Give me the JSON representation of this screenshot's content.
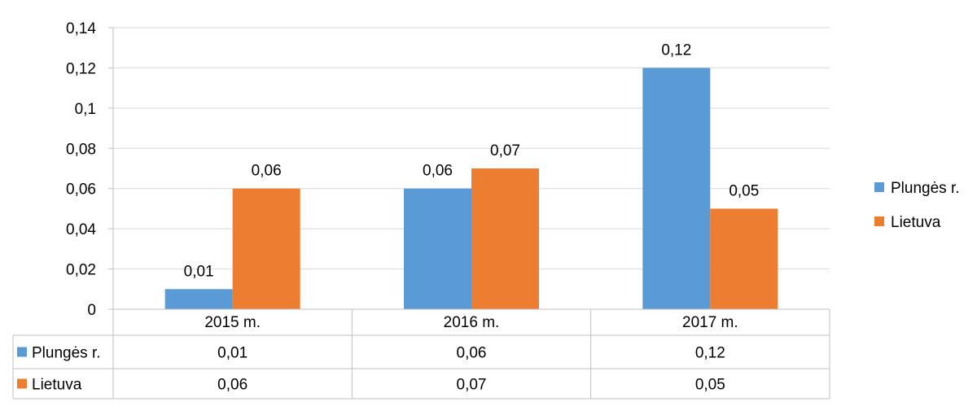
{
  "chart_data": {
    "type": "bar",
    "categories": [
      "2015 m.",
      "2016 m.",
      "2017 m."
    ],
    "series": [
      {
        "name": "Plungės r.",
        "values": [
          0.01,
          0.06,
          0.12
        ],
        "color": "#5b9bd5",
        "labels": [
          "0,01",
          "0,06",
          "0,12"
        ]
      },
      {
        "name": "Lietuva",
        "values": [
          0.06,
          0.07,
          0.05
        ],
        "color": "#ed7d31",
        "labels": [
          "0,06",
          "0,07",
          "0,05"
        ]
      }
    ],
    "ylim": [
      0,
      0.14
    ],
    "yticks": [
      0,
      0.02,
      0.04,
      0.06,
      0.08,
      0.1,
      0.12,
      0.14
    ],
    "ytick_labels": [
      "0",
      "0,02",
      "0,04",
      "0,06",
      "0,08",
      "0,1",
      "0,12",
      "0,14"
    ],
    "grid": true,
    "legend_position": "right",
    "data_table": true
  }
}
